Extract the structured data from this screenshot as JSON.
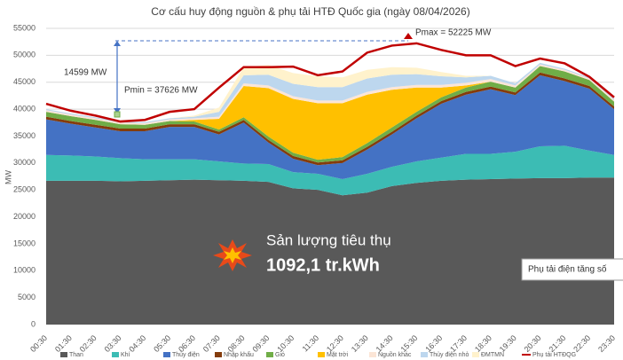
{
  "chart_data": {
    "type": "stacked_area",
    "title": "Cơ cấu huy động nguồn & phụ tải HTĐ Quốc gia (ngày 08/04/2026)",
    "y_label": "MW",
    "categories": [
      "00:30",
      "01:30",
      "02:30",
      "03:30",
      "04:30",
      "05:30",
      "06:30",
      "07:30",
      "08:30",
      "09:30",
      "10:30",
      "11:30",
      "12:30",
      "13:30",
      "14:30",
      "15:30",
      "16:30",
      "17:30",
      "18:30",
      "19:30",
      "20:30",
      "21:30",
      "22:30",
      "23:30"
    ],
    "ylim": [
      0,
      55000
    ],
    "yticks": [
      0,
      5000,
      10000,
      15000,
      20000,
      25000,
      30000,
      35000,
      40000,
      45000,
      50000,
      55000
    ],
    "grid": true,
    "series": [
      {
        "name": "Than",
        "color": "#595959",
        "values": [
          26700,
          26700,
          26700,
          26600,
          26700,
          26800,
          26900,
          26800,
          26700,
          26500,
          25300,
          25000,
          24000,
          24500,
          25700,
          26300,
          26700,
          26900,
          27000,
          27100,
          27200,
          27200,
          27300,
          27300
        ]
      },
      {
        "name": "Khí",
        "color": "#3cbcb4",
        "values": [
          4800,
          4700,
          4500,
          4300,
          4000,
          3900,
          3800,
          3500,
          3200,
          3300,
          3000,
          3000,
          3000,
          3500,
          3600,
          4000,
          4300,
          4800,
          4700,
          5000,
          5900,
          6000,
          5000,
          4200
        ]
      },
      {
        "name": "Thủy điện",
        "color": "#4472c4",
        "values": [
          6600,
          5900,
          5400,
          5000,
          5200,
          6000,
          6000,
          5000,
          7600,
          4000,
          2500,
          1600,
          3000,
          4500,
          6000,
          8000,
          10000,
          11000,
          12000,
          10500,
          13200,
          12000,
          11500,
          8500
        ]
      },
      {
        "name": "Nhập khẩu",
        "color": "#843c0c",
        "values": [
          500,
          500,
          500,
          500,
          500,
          500,
          500,
          500,
          500,
          500,
          500,
          500,
          500,
          500,
          500,
          500,
          500,
          500,
          500,
          500,
          500,
          500,
          500,
          500
        ]
      },
      {
        "name": "Gió",
        "color": "#70ad47",
        "values": [
          900,
          900,
          900,
          800,
          700,
          600,
          500,
          400,
          500,
          600,
          600,
          500,
          600,
          700,
          800,
          700,
          700,
          800,
          900,
          900,
          1200,
          1300,
          1100,
          900
        ]
      },
      {
        "name": "Mặt trời",
        "color": "#ffc000",
        "values": [
          0,
          0,
          0,
          0,
          0,
          0,
          300,
          2000,
          5800,
          9000,
          10000,
          10500,
          10000,
          9000,
          7000,
          4500,
          1800,
          400,
          0,
          0,
          0,
          0,
          0,
          0
        ]
      },
      {
        "name": "Nguồn khác",
        "color": "#fbe5d6",
        "values": [
          300,
          300,
          300,
          300,
          300,
          300,
          300,
          400,
          500,
          500,
          500,
          500,
          500,
          500,
          500,
          500,
          500,
          500,
          500,
          400,
          300,
          300,
          300,
          300
        ]
      },
      {
        "name": "Thủy điện nhỏ",
        "color": "#bdd7ee",
        "values": [
          200,
          200,
          200,
          200,
          200,
          200,
          300,
          900,
          1500,
          2000,
          2300,
          2500,
          2500,
          2500,
          2300,
          2000,
          1600,
          1000,
          600,
          400,
          300,
          200,
          200,
          200
        ]
      },
      {
        "name": "ĐMTMN",
        "color": "#fff2cc",
        "values": [
          0,
          0,
          0,
          0,
          0,
          0,
          200,
          800,
          1500,
          1800,
          2000,
          2000,
          1800,
          1600,
          1400,
          1200,
          800,
          300,
          0,
          0,
          0,
          0,
          0,
          0
        ]
      }
    ],
    "line": {
      "name": "Phụ tải HTĐQG",
      "color": "#c00000",
      "values": [
        41000,
        39700,
        38800,
        37700,
        38000,
        39500,
        40000,
        44000,
        47800,
        47800,
        47900,
        46300,
        47000,
        50500,
        51800,
        52225,
        51000,
        50000,
        50000,
        48000,
        49400,
        48500,
        46000,
        42200
      ]
    },
    "annotations": [
      "Pmax = 52225 MW",
      "Pmin = 37626 MW",
      "14599 MW",
      "Sản lượng tiêu thụ",
      "1092,1 tr.kWh",
      "Phụ tải điện tăng số"
    ]
  }
}
